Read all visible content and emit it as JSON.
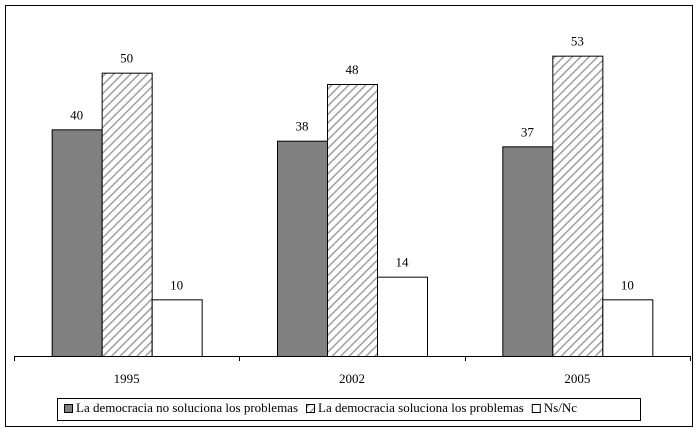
{
  "chart_data": {
    "type": "bar",
    "categories": [
      "1995",
      "2002",
      "2005"
    ],
    "series": [
      {
        "name": "La democracia no soluciona los problemas",
        "color": "#808080",
        "values": [
          40,
          38,
          37
        ]
      },
      {
        "name": "La democracia soluciona los problemas",
        "color": "hatch",
        "values": [
          50,
          48,
          53
        ]
      },
      {
        "name": "Ns/Nc",
        "color": "#ffffff",
        "values": [
          10,
          14,
          10
        ]
      }
    ],
    "ylim": [
      0,
      60
    ],
    "legend": "bottom"
  }
}
